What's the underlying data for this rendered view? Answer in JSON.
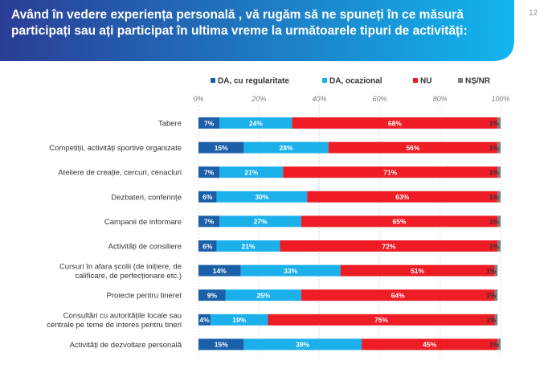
{
  "title": "Având în vedere experiența personală , vă rugăm să ne spuneți în ce măsură participați sau ați participat în ultima vreme la următoarele tipuri de activități:",
  "page_number": "12",
  "colors": {
    "banner_start": "#2a3d96",
    "banner_end": "#12b5ee"
  },
  "chart_data": {
    "type": "bar",
    "orientation": "horizontal",
    "stacked": true,
    "xlim": [
      0,
      100
    ],
    "x_ticks": [
      "0%",
      "20%",
      "40%",
      "60%",
      "80%",
      "100%"
    ],
    "legend_position": "top",
    "categories": [
      "Tabere",
      "Competiții, activități sportive organizate",
      "Ateliere de creație, cercuri, cenacluri",
      "Dezbateri, conferințe",
      "Campanii de informare",
      "Activități de consiliere",
      "Cursuri în afara școlii (de inițiere, de calificare, de perfecționare etc.)",
      "Proiecte pentru tineret",
      "Consultări cu autoritățile locale sau centrale pe teme de interes pentru tineri",
      "Activități de dezvoltare personală"
    ],
    "series": [
      {
        "name": "DA, cu regularitate",
        "color": "#1b5fa8",
        "values": [
          7,
          15,
          7,
          6,
          7,
          6,
          14,
          9,
          4,
          15
        ],
        "labels": [
          "7%",
          "15%",
          "7%",
          "6%",
          "7%",
          "6%",
          "14%",
          "9%",
          "4%",
          "15%"
        ]
      },
      {
        "name": "DA, ocazional",
        "color": "#1cb0ea",
        "values": [
          24,
          28,
          21,
          30,
          27,
          21,
          33,
          25,
          19,
          39
        ],
        "labels": [
          "24%",
          "28%",
          "21%",
          "30%",
          "27%",
          "21%",
          "33%",
          "25%",
          "19%",
          "39%"
        ]
      },
      {
        "name": "NU",
        "color": "#ee1c24",
        "values": [
          68,
          56,
          71,
          63,
          65,
          72,
          51,
          64,
          75,
          45
        ],
        "labels": [
          "68%",
          "56%",
          "71%",
          "63%",
          "65%",
          "72%",
          "51%",
          "64%",
          "75%",
          "45%"
        ]
      },
      {
        "name": "NȘ/NR",
        "color": "#7f7f7f",
        "values": [
          1,
          1,
          1,
          1,
          1,
          1,
          1,
          1,
          1,
          1
        ],
        "labels": [
          "1%",
          "1%",
          "1%",
          "1%",
          "1%",
          "1%",
          "1%",
          "1%",
          "1%",
          "1%"
        ]
      }
    ]
  }
}
